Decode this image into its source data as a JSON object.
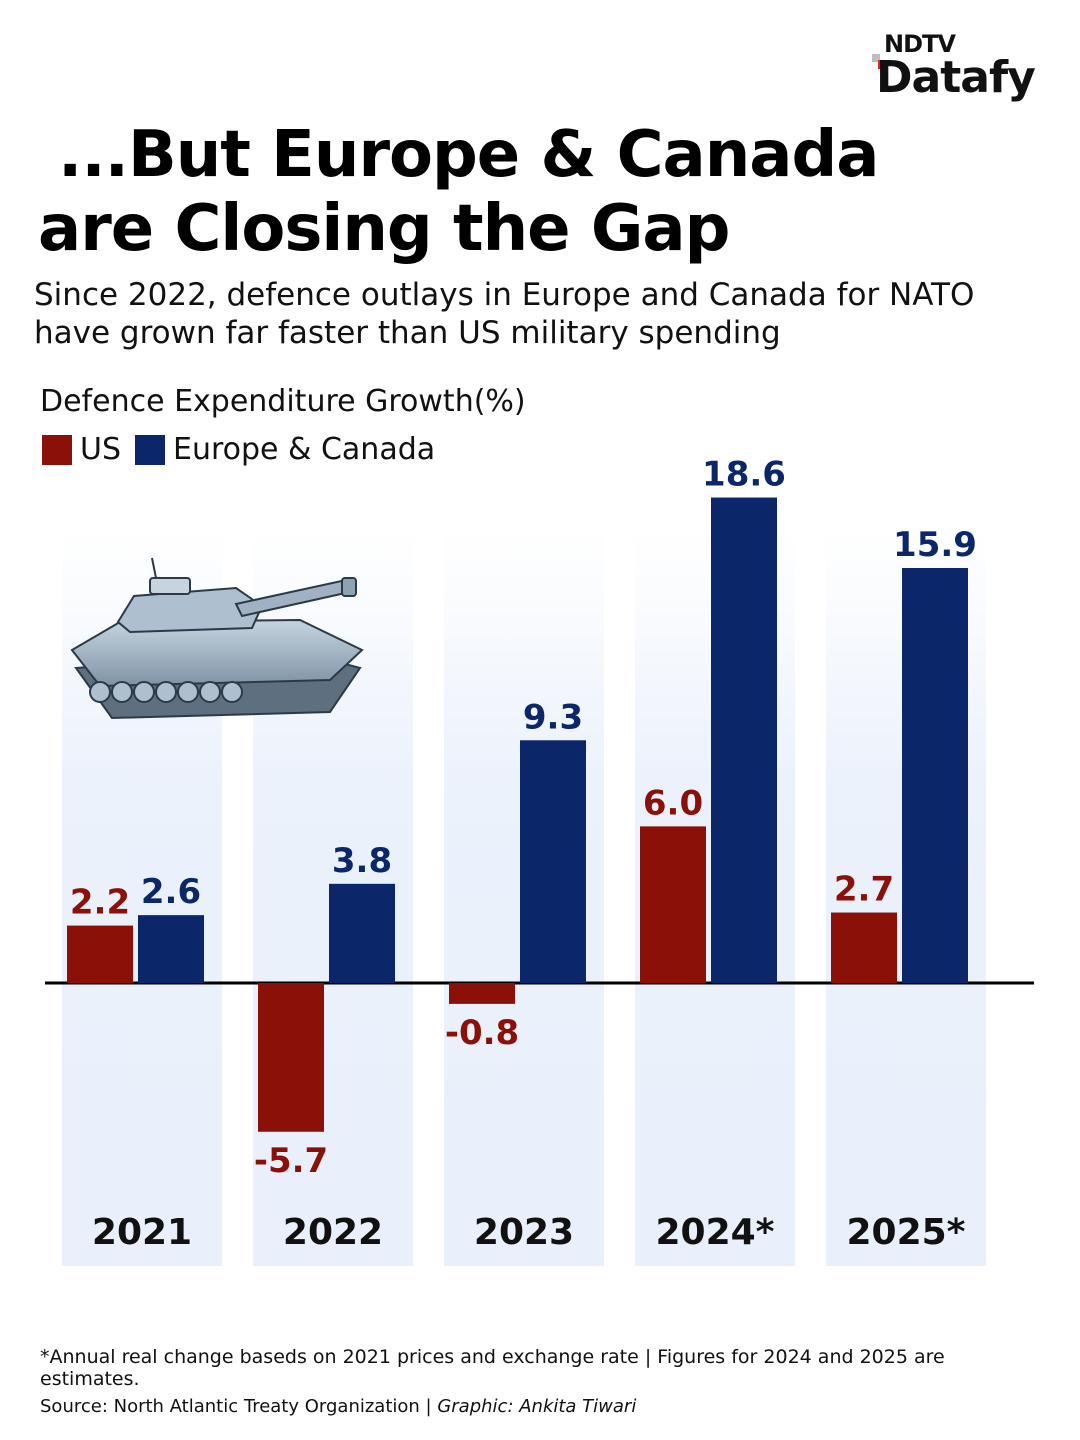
{
  "logo": {
    "top": "NDTV",
    "main": "Datafy"
  },
  "title": {
    "line1": "...But Europe & Canada",
    "line2": "are Closing the Gap"
  },
  "subtitle": "Since 2022, defence outlays in Europe and Canada for NATO have grown far faster than US military spending",
  "footnote": "*Annual real change baseds on 2021 prices and exchange rate | Figures for 2024 and 2025 are estimates.",
  "source": {
    "label": "Source: North Atlantic Treaty Organization | ",
    "credit": "Graphic: Ankita Tiwari"
  },
  "colors": {
    "us": "#8b1108",
    "europe": "#0b2769",
    "panel": "#e9f0fb"
  },
  "chart_data": {
    "type": "bar",
    "title": "Defence Expenditure Growth(%)",
    "xlabel": "",
    "ylabel": "Defence Expenditure Growth(%)",
    "categories": [
      "2021",
      "2022",
      "2023",
      "2024*",
      "2025*"
    ],
    "series": [
      {
        "name": "US",
        "values": [
          2.2,
          -5.7,
          -0.8,
          6.0,
          2.7
        ]
      },
      {
        "name": "Europe & Canada",
        "values": [
          2.6,
          3.8,
          9.3,
          18.6,
          15.9
        ]
      }
    ],
    "value_labels": {
      "US": [
        "2.2",
        "-5.7",
        "-0.8",
        "6.0",
        "2.7"
      ],
      "Europe & Canada": [
        "2.6",
        "3.8",
        "9.3",
        "18.6",
        "15.9"
      ]
    },
    "ylim": [
      -8,
      19
    ],
    "grid": false,
    "legend": "top-left"
  }
}
